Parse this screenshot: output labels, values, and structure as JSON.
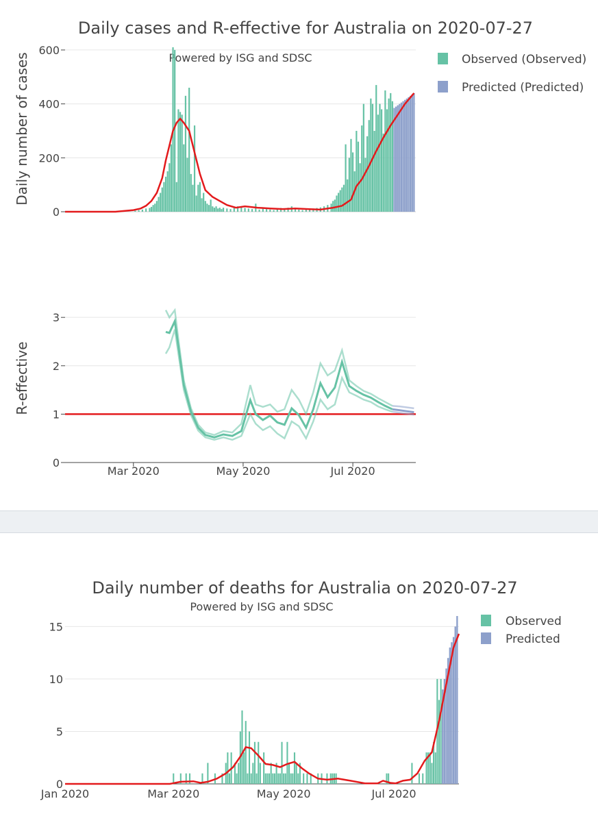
{
  "colors": {
    "observed": "#66c2a5",
    "predicted": "#8da0cb",
    "fit": "#e31a1c",
    "r_line": "#e31a1c"
  },
  "chart_data": [
    {
      "id": "cases",
      "type": "bar",
      "title": "Daily cases and R-effective for Australia on 2020-07-27",
      "subtitle": "Powered by ISG and SDSC",
      "xlabel": "",
      "ylabel": "Daily number of cases",
      "xlim": [
        "2020-01-23",
        "2020-08-05"
      ],
      "ylim": [
        0,
        610
      ],
      "yticks": [
        0,
        200,
        400,
        600
      ],
      "legend": {
        "position": "top-right",
        "entries": [
          "Observed (Observed)",
          "Predicted (Predicted)"
        ]
      },
      "observed": {
        "name": "Observed (Observed)",
        "dates": [
          "2020-03-02",
          "2020-03-04",
          "2020-03-06",
          "2020-03-08",
          "2020-03-10",
          "2020-03-11",
          "2020-03-12",
          "2020-03-13",
          "2020-03-14",
          "2020-03-15",
          "2020-03-16",
          "2020-03-17",
          "2020-03-18",
          "2020-03-19",
          "2020-03-20",
          "2020-03-21",
          "2020-03-22",
          "2020-03-23",
          "2020-03-24",
          "2020-03-25",
          "2020-03-26",
          "2020-03-27",
          "2020-03-28",
          "2020-03-29",
          "2020-03-30",
          "2020-03-31",
          "2020-04-01",
          "2020-04-02",
          "2020-04-03",
          "2020-04-04",
          "2020-04-05",
          "2020-04-06",
          "2020-04-07",
          "2020-04-08",
          "2020-04-09",
          "2020-04-10",
          "2020-04-11",
          "2020-04-12",
          "2020-04-13",
          "2020-04-14",
          "2020-04-15",
          "2020-04-16",
          "2020-04-17",
          "2020-04-18",
          "2020-04-19",
          "2020-04-20",
          "2020-04-22",
          "2020-04-24",
          "2020-04-26",
          "2020-04-28",
          "2020-04-30",
          "2020-05-02",
          "2020-05-04",
          "2020-05-06",
          "2020-05-08",
          "2020-05-10",
          "2020-05-12",
          "2020-05-14",
          "2020-05-16",
          "2020-05-18",
          "2020-05-20",
          "2020-05-22",
          "2020-05-24",
          "2020-05-26",
          "2020-05-28",
          "2020-05-30",
          "2020-06-01",
          "2020-06-03",
          "2020-06-05",
          "2020-06-07",
          "2020-06-09",
          "2020-06-11",
          "2020-06-13",
          "2020-06-15",
          "2020-06-17",
          "2020-06-19",
          "2020-06-20",
          "2020-06-21",
          "2020-06-22",
          "2020-06-23",
          "2020-06-24",
          "2020-06-25",
          "2020-06-26",
          "2020-06-27",
          "2020-06-28",
          "2020-06-29",
          "2020-06-30",
          "2020-07-01",
          "2020-07-02",
          "2020-07-03",
          "2020-07-04",
          "2020-07-05",
          "2020-07-06",
          "2020-07-07",
          "2020-07-08",
          "2020-07-09",
          "2020-07-10",
          "2020-07-11",
          "2020-07-12",
          "2020-07-13",
          "2020-07-14",
          "2020-07-15",
          "2020-07-16",
          "2020-07-17",
          "2020-07-18",
          "2020-07-19",
          "2020-07-20",
          "2020-07-21",
          "2020-07-22",
          "2020-07-23"
        ],
        "values": [
          4,
          6,
          8,
          12,
          14,
          18,
          25,
          30,
          40,
          55,
          70,
          90,
          110,
          130,
          150,
          180,
          250,
          610,
          600,
          110,
          380,
          370,
          360,
          250,
          430,
          200,
          460,
          140,
          100,
          320,
          60,
          100,
          110,
          50,
          70,
          40,
          30,
          25,
          45,
          20,
          15,
          20,
          12,
          15,
          10,
          15,
          12,
          10,
          18,
          20,
          16,
          14,
          12,
          10,
          30,
          8,
          12,
          10,
          8,
          6,
          10,
          14,
          12,
          15,
          20,
          10,
          8,
          6,
          8,
          10,
          12,
          14,
          16,
          20,
          25,
          30,
          40,
          45,
          60,
          70,
          80,
          90,
          100,
          250,
          120,
          200,
          270,
          220,
          150,
          300,
          260,
          180,
          320,
          400,
          200,
          280,
          340,
          420,
          400,
          300,
          470,
          360,
          400,
          380,
          290,
          450,
          380,
          420,
          440,
          410
        ]
      },
      "predicted": {
        "name": "Predicted (Predicted)",
        "dates": [
          "2020-07-24",
          "2020-07-25",
          "2020-07-26",
          "2020-07-27",
          "2020-07-28",
          "2020-07-29",
          "2020-07-30",
          "2020-07-31",
          "2020-08-01",
          "2020-08-02",
          "2020-08-03",
          "2020-08-04"
        ],
        "values": [
          385,
          390,
          395,
          400,
          405,
          410,
          415,
          420,
          425,
          430,
          435,
          440
        ]
      },
      "fit": {
        "dates": [
          "2020-01-23",
          "2020-02-20",
          "2020-03-01",
          "2020-03-05",
          "2020-03-08",
          "2020-03-11",
          "2020-03-14",
          "2020-03-17",
          "2020-03-19",
          "2020-03-21",
          "2020-03-23",
          "2020-03-25",
          "2020-03-27",
          "2020-03-29",
          "2020-04-01",
          "2020-04-04",
          "2020-04-07",
          "2020-04-10",
          "2020-04-14",
          "2020-04-18",
          "2020-04-22",
          "2020-04-27",
          "2020-05-02",
          "2020-05-09",
          "2020-05-16",
          "2020-05-23",
          "2020-05-30",
          "2020-06-06",
          "2020-06-13",
          "2020-06-20",
          "2020-06-25",
          "2020-06-30",
          "2020-07-03",
          "2020-07-06",
          "2020-07-10",
          "2020-07-14",
          "2020-07-18",
          "2020-07-22",
          "2020-07-26",
          "2020-07-30",
          "2020-08-04"
        ],
        "values": [
          0,
          0,
          6,
          12,
          22,
          40,
          70,
          125,
          190,
          245,
          300,
          330,
          345,
          330,
          300,
          220,
          140,
          80,
          55,
          40,
          25,
          15,
          20,
          15,
          12,
          10,
          12,
          10,
          8,
          15,
          22,
          45,
          95,
          120,
          170,
          225,
          275,
          320,
          360,
          400,
          440
        ]
      }
    },
    {
      "id": "reff",
      "type": "line",
      "title": "",
      "xlabel": "",
      "ylabel": "R-effective",
      "xlim": [
        "2020-01-23",
        "2020-08-05"
      ],
      "ylim": [
        0,
        3.3
      ],
      "yticks": [
        0,
        1,
        2,
        3
      ],
      "xticks": [
        "Mar 2020",
        "May 2020",
        "Jul 2020"
      ],
      "xtick_dates": [
        "2020-03-01",
        "2020-05-01",
        "2020-07-01"
      ],
      "reference_line": 1,
      "dates": [
        "2020-03-19",
        "2020-03-21",
        "2020-03-24",
        "2020-03-26",
        "2020-03-29",
        "2020-04-02",
        "2020-04-06",
        "2020-04-10",
        "2020-04-15",
        "2020-04-20",
        "2020-04-25",
        "2020-04-30",
        "2020-05-05",
        "2020-05-08",
        "2020-05-12",
        "2020-05-16",
        "2020-05-20",
        "2020-05-24",
        "2020-05-28",
        "2020-06-01",
        "2020-06-05",
        "2020-06-09",
        "2020-06-13",
        "2020-06-17",
        "2020-06-21",
        "2020-06-25",
        "2020-06-29",
        "2020-07-03",
        "2020-07-07",
        "2020-07-11",
        "2020-07-15",
        "2020-07-19",
        "2020-07-23"
      ],
      "median": [
        2.7,
        2.68,
        2.92,
        2.4,
        1.6,
        1.05,
        0.72,
        0.57,
        0.52,
        0.58,
        0.55,
        0.65,
        1.29,
        1.0,
        0.88,
        0.97,
        0.83,
        0.78,
        1.12,
        0.98,
        0.72,
        1.1,
        1.64,
        1.35,
        1.55,
        2.08,
        1.58,
        1.48,
        1.4,
        1.34,
        1.25,
        1.17,
        1.1
      ],
      "upper": [
        3.15,
        3.0,
        3.15,
        2.55,
        1.7,
        1.12,
        0.78,
        0.62,
        0.57,
        0.65,
        0.62,
        0.8,
        1.6,
        1.2,
        1.15,
        1.2,
        1.05,
        1.1,
        1.5,
        1.3,
        1.0,
        1.45,
        2.05,
        1.8,
        1.9,
        2.32,
        1.7,
        1.58,
        1.48,
        1.42,
        1.33,
        1.25,
        1.17
      ],
      "lower": [
        2.25,
        2.38,
        2.75,
        2.25,
        1.5,
        0.98,
        0.66,
        0.52,
        0.47,
        0.52,
        0.47,
        0.55,
        1.0,
        0.8,
        0.67,
        0.75,
        0.6,
        0.5,
        0.85,
        0.75,
        0.5,
        0.85,
        1.3,
        1.1,
        1.2,
        1.75,
        1.45,
        1.38,
        1.3,
        1.25,
        1.16,
        1.1,
        1.05
      ],
      "predicted_dates": [
        "2020-07-23",
        "2020-07-27",
        "2020-07-31",
        "2020-08-04"
      ],
      "predicted_median": [
        1.1,
        1.08,
        1.06,
        1.04
      ],
      "predicted_upper": [
        1.17,
        1.16,
        1.14,
        1.12
      ],
      "predicted_lower": [
        1.05,
        1.03,
        1.01,
        0.99
      ]
    },
    {
      "id": "deaths",
      "type": "bar",
      "title": "Daily number of deaths for Australia on 2020-07-27",
      "subtitle": "Powered by ISG and SDSC",
      "xlabel": "",
      "ylabel": "",
      "xlim": [
        "2020-01-01",
        "2020-08-06"
      ],
      "ylim": [
        0,
        16
      ],
      "yticks": [
        0,
        5,
        10,
        15
      ],
      "xticks": [
        "Jan 2020",
        "Mar 2020",
        "May 2020",
        "Jul 2020"
      ],
      "xtick_dates": [
        "2020-01-01",
        "2020-03-01",
        "2020-05-01",
        "2020-07-01"
      ],
      "legend": {
        "position": "top-right",
        "entries": [
          "Observed",
          "Predicted"
        ]
      },
      "observed": {
        "name": "Observed",
        "dates": [
          "2020-03-01",
          "2020-03-05",
          "2020-03-08",
          "2020-03-10",
          "2020-03-17",
          "2020-03-20",
          "2020-03-24",
          "2020-03-28",
          "2020-03-30",
          "2020-03-31",
          "2020-04-01",
          "2020-04-02",
          "2020-04-04",
          "2020-04-05",
          "2020-04-06",
          "2020-04-07",
          "2020-04-08",
          "2020-04-09",
          "2020-04-10",
          "2020-04-11",
          "2020-04-12",
          "2020-04-13",
          "2020-04-14",
          "2020-04-15",
          "2020-04-16",
          "2020-04-17",
          "2020-04-18",
          "2020-04-20",
          "2020-04-21",
          "2020-04-22",
          "2020-04-23",
          "2020-04-24",
          "2020-04-25",
          "2020-04-26",
          "2020-04-27",
          "2020-04-28",
          "2020-04-29",
          "2020-04-30",
          "2020-05-01",
          "2020-05-02",
          "2020-05-03",
          "2020-05-04",
          "2020-05-05",
          "2020-05-06",
          "2020-05-07",
          "2020-05-08",
          "2020-05-09",
          "2020-05-10",
          "2020-05-12",
          "2020-05-14",
          "2020-05-16",
          "2020-05-20",
          "2020-05-22",
          "2020-05-25",
          "2020-05-27",
          "2020-05-28",
          "2020-05-29",
          "2020-05-30",
          "2020-06-27",
          "2020-06-28",
          "2020-07-11",
          "2020-07-15",
          "2020-07-17",
          "2020-07-19",
          "2020-07-20",
          "2020-07-21",
          "2020-07-22",
          "2020-07-23",
          "2020-07-24",
          "2020-07-25",
          "2020-07-26",
          "2020-07-27"
        ],
        "values": [
          1,
          1,
          1,
          1,
          1,
          2,
          1,
          1,
          2,
          3,
          1,
          3,
          2,
          1,
          2,
          5,
          7,
          3,
          6,
          1,
          5,
          1,
          2,
          4,
          1,
          4,
          2,
          3,
          1,
          1,
          1,
          2,
          1,
          1,
          2,
          1,
          1,
          4,
          1,
          1,
          4,
          2,
          1,
          1,
          3,
          2,
          1,
          2,
          1,
          1,
          1,
          1,
          1,
          1,
          1,
          1,
          1,
          1,
          1,
          1,
          2,
          1,
          1,
          3,
          3,
          3,
          2,
          4,
          3,
          10,
          8,
          10
        ]
      },
      "predicted": {
        "name": "Predicted",
        "dates": [
          "2020-07-28",
          "2020-07-29",
          "2020-07-30",
          "2020-07-31",
          "2020-08-01",
          "2020-08-02",
          "2020-08-03",
          "2020-08-04",
          "2020-08-05"
        ],
        "values": [
          9,
          10,
          11,
          12,
          13,
          13.5,
          14,
          15,
          16
        ]
      },
      "fit": {
        "dates": [
          "2020-01-01",
          "2020-02-28",
          "2020-03-05",
          "2020-03-12",
          "2020-03-16",
          "2020-03-20",
          "2020-03-25",
          "2020-03-30",
          "2020-04-03",
          "2020-04-07",
          "2020-04-10",
          "2020-04-13",
          "2020-04-17",
          "2020-04-21",
          "2020-04-25",
          "2020-04-29",
          "2020-05-03",
          "2020-05-07",
          "2020-05-11",
          "2020-05-15",
          "2020-05-20",
          "2020-05-25",
          "2020-05-31",
          "2020-06-07",
          "2020-06-15",
          "2020-06-22",
          "2020-06-25",
          "2020-06-29",
          "2020-07-02",
          "2020-07-06",
          "2020-07-10",
          "2020-07-14",
          "2020-07-18",
          "2020-07-22",
          "2020-07-26",
          "2020-07-30",
          "2020-08-03",
          "2020-08-06"
        ],
        "values": [
          0,
          0,
          0.2,
          0.25,
          0.1,
          0.2,
          0.5,
          1.0,
          1.6,
          2.6,
          3.5,
          3.4,
          2.7,
          1.9,
          1.8,
          1.6,
          1.9,
          2.1,
          1.5,
          1.0,
          0.5,
          0.4,
          0.5,
          0.3,
          0.05,
          0.05,
          0.3,
          0.1,
          0.05,
          0.3,
          0.4,
          1.0,
          2.2,
          3.0,
          6.0,
          9.5,
          13.0,
          14.3
        ]
      }
    }
  ]
}
